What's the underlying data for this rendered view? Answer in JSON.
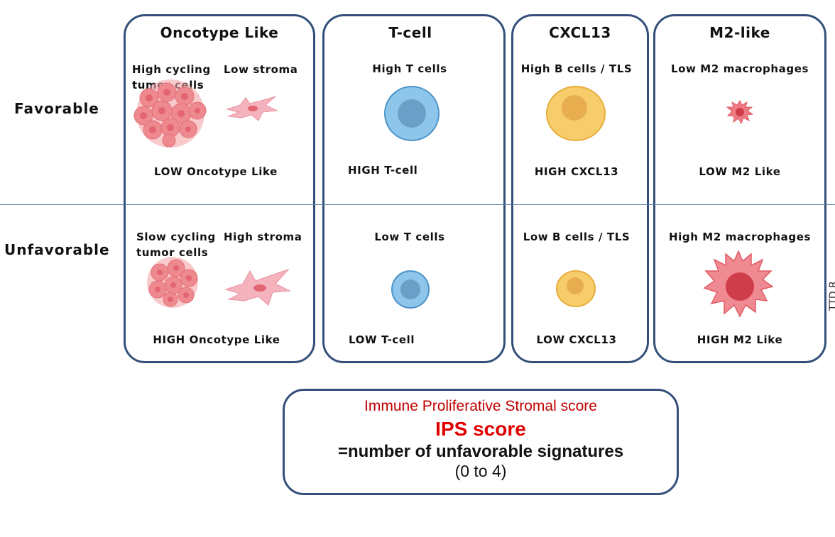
{
  "rows": {
    "favorable": "Favorable",
    "unfavorable": "Unfavorable"
  },
  "panels": {
    "oncotype": {
      "title": "Oncotype Like",
      "fav_a": "High cycling\ntumor cells",
      "fav_b": "Low stroma",
      "fav_bottom": "LOW Oncotype Like",
      "unfav_a": "Slow cycling\ntumor cells",
      "unfav_b": "High stroma",
      "unfav_bottom": "HIGH Oncotype Like"
    },
    "tcell": {
      "title": "T-cell",
      "fav_top": "High T cells",
      "fav_bottom": "HIGH T-cell",
      "unfav_top": "Low T cells",
      "unfav_bottom": "LOW T-cell"
    },
    "cxcl13": {
      "title": "CXCL13",
      "fav_top": "High B cells / TLS",
      "fav_bottom": "HIGH CXCL13",
      "unfav_top": "Low B cells / TLS",
      "unfav_bottom": "LOW CXCL13"
    },
    "m2": {
      "title": "M2-like",
      "fav_top": "Low M2 macrophages",
      "fav_bottom": "LOW M2 Like",
      "unfav_top": "High M2 macrophages",
      "unfav_bottom": "HIGH M2 Like"
    }
  },
  "score_box": {
    "line1": "Immune Proliferative Stromal score",
    "line2": "IPS score",
    "line3": "=number of unfavorable signatures",
    "line4": "(0 to 4)"
  },
  "colors": {
    "panel_border": "#34507a",
    "tcell_blue": "#8ec5ea",
    "bcell_yellow": "#f6cd6a",
    "tumor_pink": "#ee8a8f",
    "stroma_pink": "#f4b3bd",
    "macrophage_red": "#e5545f",
    "score_red": "#c00000"
  },
  "edge_text": "TTD R…"
}
